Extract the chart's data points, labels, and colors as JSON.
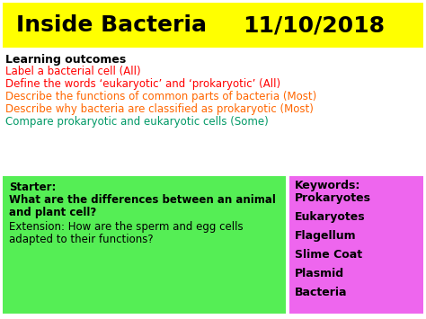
{
  "title1": "Inside Bacteria",
  "title2": "11/10/2018",
  "title_bg": "#FFFF00",
  "title_color": "#000000",
  "bg_color": "#FFFFFF",
  "learning_outcomes_label": "Learning outcomes",
  "learning_outcomes": [
    {
      "text": "Label a bacterial cell (All)",
      "color": "#FF0000"
    },
    {
      "text": "Define the words ‘eukaryotic’ and ‘prokaryotic’ (All)",
      "color": "#FF0000"
    },
    {
      "text": "Describe the functions of common parts of bacteria (Most)",
      "color": "#FF6600"
    },
    {
      "text": "Describe why bacteria are classified as prokaryotic (Most)",
      "color": "#FF6600"
    },
    {
      "text": "Compare prokaryotic and eukaryotic cells (Some)",
      "color": "#009966"
    }
  ],
  "starter_bg": "#55EE55",
  "starter_bold_lines": [
    "Starter:",
    "What are the differences between an animal",
    "and plant cell?"
  ],
  "starter_normal_lines": [
    "Extension: How are the sperm and egg cells",
    "adapted to their functions?"
  ],
  "keywords_bg": "#EE66EE",
  "keywords_label": "Keywords:",
  "keywords": [
    "Prokaryotes",
    "Eukaryotes",
    "Flagellum",
    "Slime Coat",
    "Plasmid",
    "Bacteria"
  ],
  "fig_width": 4.74,
  "fig_height": 3.55,
  "dpi": 100
}
